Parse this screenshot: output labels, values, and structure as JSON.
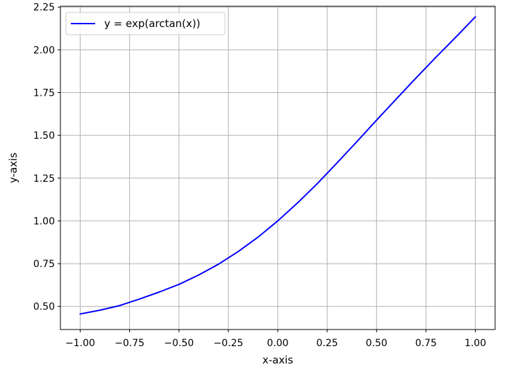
{
  "chart_data": {
    "type": "line",
    "title": "",
    "xlabel": "x-axis",
    "ylabel": "y-axis",
    "xlim": [
      -1.1,
      1.1
    ],
    "ylim": [
      0.365,
      2.255
    ],
    "grid": true,
    "legend_position": "upper-left",
    "x_ticks": [
      -1.0,
      -0.75,
      -0.5,
      -0.25,
      0.0,
      0.25,
      0.5,
      0.75,
      1.0
    ],
    "x_tick_labels": [
      "−1.00",
      "−0.75",
      "−0.50",
      "−0.25",
      "0.00",
      "0.25",
      "0.50",
      "0.75",
      "1.00"
    ],
    "y_ticks": [
      0.5,
      0.75,
      1.0,
      1.25,
      1.5,
      1.75,
      2.0,
      2.25
    ],
    "y_tick_labels": [
      "0.50",
      "0.75",
      "1.00",
      "1.25",
      "1.50",
      "1.75",
      "2.00",
      "2.25"
    ],
    "series": [
      {
        "name": "y = exp(arctan(x))",
        "color": "#0000ff",
        "x": [
          -1.0,
          -0.9,
          -0.8,
          -0.7,
          -0.6,
          -0.5,
          -0.4,
          -0.3,
          -0.2,
          -0.1,
          0.0,
          0.1,
          0.2,
          0.3,
          0.4,
          0.5,
          0.6,
          0.7,
          0.8,
          0.9,
          1.0
        ],
        "y": [
          0.456,
          0.478,
          0.505,
          0.543,
          0.584,
          0.629,
          0.684,
          0.747,
          0.821,
          0.905,
          1.0,
          1.105,
          1.218,
          1.339,
          1.463,
          1.589,
          1.713,
          1.836,
          1.956,
          2.073,
          2.193
        ]
      }
    ]
  }
}
